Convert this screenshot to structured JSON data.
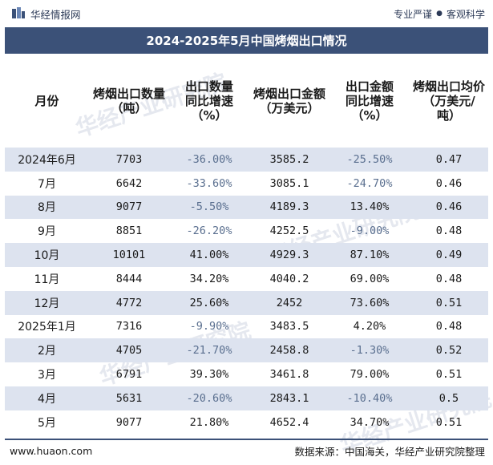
{
  "header": {
    "brand": "华经情报网",
    "slogan_left": "专业严谨",
    "slogan_right": "客观科学"
  },
  "title": "2024-2025年5月中国烤烟出口情况",
  "columns": [
    "月份",
    "烤烟出口数量\n（吨）",
    "出口数量\n同比增速\n（%）",
    "烤烟出口金额\n（万美元）",
    "出口金额\n同比增速\n（%）",
    "烤烟出口均价\n（万美元/\n吨）"
  ],
  "rows": [
    {
      "month": "2024年6月",
      "qty": "7703",
      "qty_yoy": "-36.00%",
      "amount": "3585.2",
      "amount_yoy": "-25.50%",
      "price": "0.47"
    },
    {
      "month": "7月",
      "qty": "6642",
      "qty_yoy": "-33.60%",
      "amount": "3085.1",
      "amount_yoy": "-24.70%",
      "price": "0.46"
    },
    {
      "month": "8月",
      "qty": "9077",
      "qty_yoy": "-5.50%",
      "amount": "4189.3",
      "amount_yoy": "13.40%",
      "price": "0.46"
    },
    {
      "month": "9月",
      "qty": "8851",
      "qty_yoy": "-26.20%",
      "amount": "4252.5",
      "amount_yoy": "-9.00%",
      "price": "0.48"
    },
    {
      "month": "10月",
      "qty": "10101",
      "qty_yoy": "41.00%",
      "amount": "4929.3",
      "amount_yoy": "87.10%",
      "price": "0.49"
    },
    {
      "month": "11月",
      "qty": "8444",
      "qty_yoy": "34.20%",
      "amount": "4040.2",
      "amount_yoy": "69.00%",
      "price": "0.48"
    },
    {
      "month": "12月",
      "qty": "4772",
      "qty_yoy": "25.60%",
      "amount": "2452",
      "amount_yoy": "73.60%",
      "price": "0.51"
    },
    {
      "month": "2025年1月",
      "qty": "7316",
      "qty_yoy": "-9.90%",
      "amount": "3483.5",
      "amount_yoy": "4.20%",
      "price": "0.48"
    },
    {
      "month": "2月",
      "qty": "4705",
      "qty_yoy": "-21.70%",
      "amount": "2458.8",
      "amount_yoy": "-1.30%",
      "price": "0.52"
    },
    {
      "month": "3月",
      "qty": "6791",
      "qty_yoy": "39.30%",
      "amount": "3461.8",
      "amount_yoy": "79.00%",
      "price": "0.51"
    },
    {
      "month": "4月",
      "qty": "5631",
      "qty_yoy": "-20.60%",
      "amount": "2843.1",
      "amount_yoy": "-10.40%",
      "price": "0.5"
    },
    {
      "month": "5月",
      "qty": "9077",
      "qty_yoy": "21.80%",
      "amount": "4652.4",
      "amount_yoy": "34.70%",
      "price": "0.51"
    }
  ],
  "watermark": "华经产业研究院",
  "footer": {
    "website": "www.huaon.com",
    "source": "数据来源：中国海关，华经产业研究院整理"
  },
  "colors": {
    "title_bg": "#3b5178",
    "row_shade": "#dde3ef",
    "negative_text": "#5a6f8f"
  }
}
